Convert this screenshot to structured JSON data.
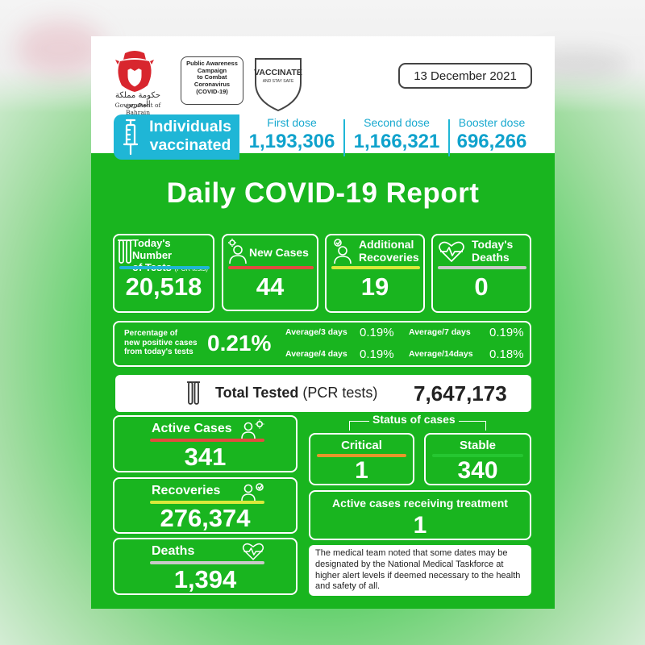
{
  "header": {
    "gov_arabic": "حكومة مملكة البحرين",
    "gov_english": "Government of Bahrain",
    "awareness_lines": [
      "Public Awareness",
      "Campaign",
      "to Combat",
      "Coronavirus",
      "(COVID-19)"
    ],
    "shield_title": "VACCINATE",
    "shield_sub": "AND STAY SAFE",
    "date": "13 December 2021"
  },
  "vaccination": {
    "badge_line1": "Individuals",
    "badge_line2": "vaccinated",
    "doses": [
      {
        "label": "First dose",
        "value": "1,193,306"
      },
      {
        "label": "Second dose",
        "value": "1,166,321"
      },
      {
        "label": "Booster dose",
        "value": "696,266"
      }
    ]
  },
  "title": "Daily COVID-19 Report",
  "daily": {
    "tests_label1": "Today's Number",
    "tests_label2": "of Tests",
    "tests_label_small": "(PCR tests)",
    "tests_value": "20,518",
    "new_cases_label": "New Cases",
    "new_cases_value": "44",
    "recoveries_label1": "Additional",
    "recoveries_label2": "Recoveries",
    "recoveries_value": "19",
    "deaths_label1": "Today's",
    "deaths_label2": "Deaths",
    "deaths_value": "0"
  },
  "positivity": {
    "label_lines": [
      "Percentage of",
      "new positive cases",
      "from today's tests"
    ],
    "value": "0.21%",
    "averages": [
      {
        "label": "Average/3 days",
        "value": "0.19%"
      },
      {
        "label": "Average/7 days",
        "value": "0.19%"
      },
      {
        "label": "Average/4 days",
        "value": "0.19%"
      },
      {
        "label": "Average/14days",
        "value": "0.18%"
      }
    ]
  },
  "total_tested": {
    "label": "Total Tested",
    "label_suffix": "(PCR tests)",
    "value": "7,647,173"
  },
  "cumulative": {
    "active_label": "Active Cases",
    "active_value": "341",
    "recoveries_label": "Recoveries",
    "recoveries_value": "276,374",
    "deaths_label": "Deaths",
    "deaths_value": "1,394"
  },
  "status": {
    "heading": "Status of cases",
    "critical_label": "Critical",
    "critical_value": "1",
    "stable_label": "Stable",
    "stable_value": "340",
    "treatment_label": "Active cases receiving treatment",
    "treatment_value": "1"
  },
  "note": "The medical team noted that some dates may be designated by the National Medical Taskforce at higher alert levels if deemed necessary to the health and safety of all.",
  "colors": {
    "green": "#19b51f",
    "cyan": "#1fb6d6",
    "red_bar": "#e34b3f",
    "yellow_bar": "#d9e93a",
    "gray_bar": "#c9c9c9",
    "orange_bar": "#e8962a",
    "green_bar": "#25c631"
  }
}
